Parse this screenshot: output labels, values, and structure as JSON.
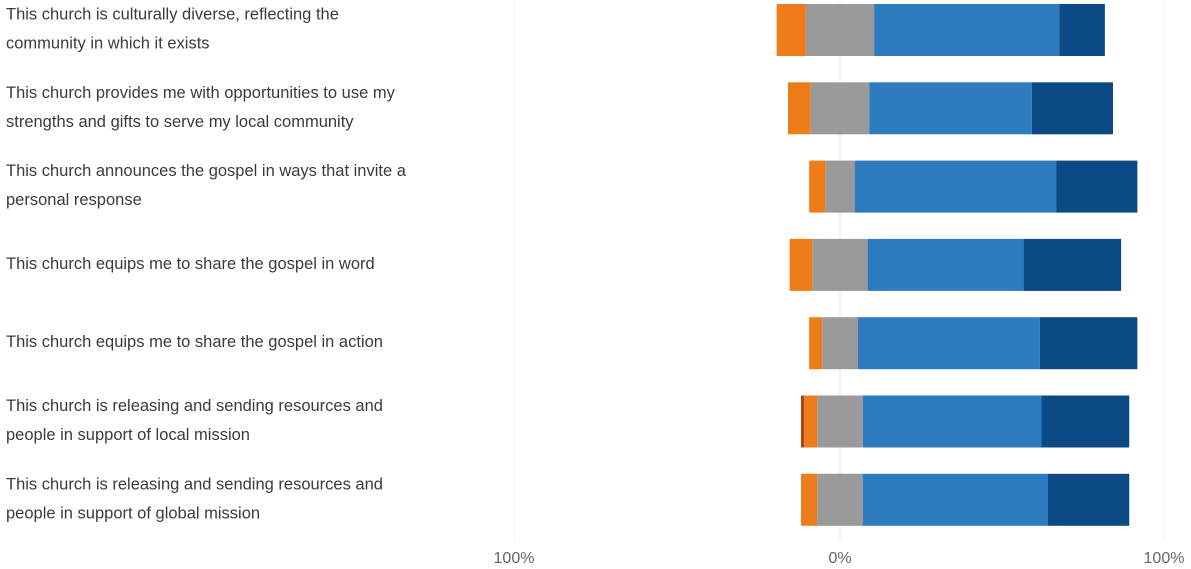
{
  "chart_data": {
    "type": "bar",
    "orientation": "horizontal",
    "stacked": "diverging",
    "title": "",
    "xlabel": "",
    "ylabel": "",
    "xlim": [
      -100,
      100
    ],
    "x_ticks": [
      "100%",
      "0%",
      "100%"
    ],
    "grid": true,
    "legend": "none",
    "categories": [
      [
        "This church is culturally diverse, reflecting the",
        "community in which it exists"
      ],
      [
        "This church provides me with opportunities to use my",
        "strengths and gifts to serve my local community"
      ],
      [
        "This church announces the gospel in ways that invite a",
        "personal response"
      ],
      [
        "This church equips me to share the gospel in word"
      ],
      [
        "This church equips me to share the gospel in action"
      ],
      [
        "This church is releasing and sending resources and",
        "people in support of local mission"
      ],
      [
        "This church is releasing and sending resources and",
        "people in support of global mission"
      ]
    ],
    "series": [
      {
        "color": "#b3410c",
        "side": "negative",
        "values": [
          0,
          0,
          0,
          0,
          0,
          1,
          0
        ]
      },
      {
        "color": "#ee7c1a",
        "side": "negative",
        "values": [
          9,
          7,
          5,
          7,
          4,
          4,
          5
        ]
      },
      {
        "color": "#9a9a9a",
        "side": "neutral",
        "values": [
          21,
          18,
          9,
          17,
          11,
          14,
          14
        ]
      },
      {
        "color": "#2e7bbf",
        "side": "positive",
        "values": [
          57,
          50,
          62,
          48,
          56,
          55,
          57
        ]
      },
      {
        "color": "#0c4a86",
        "side": "positive",
        "values": [
          14,
          25,
          25,
          30,
          30,
          27,
          25
        ]
      }
    ]
  }
}
